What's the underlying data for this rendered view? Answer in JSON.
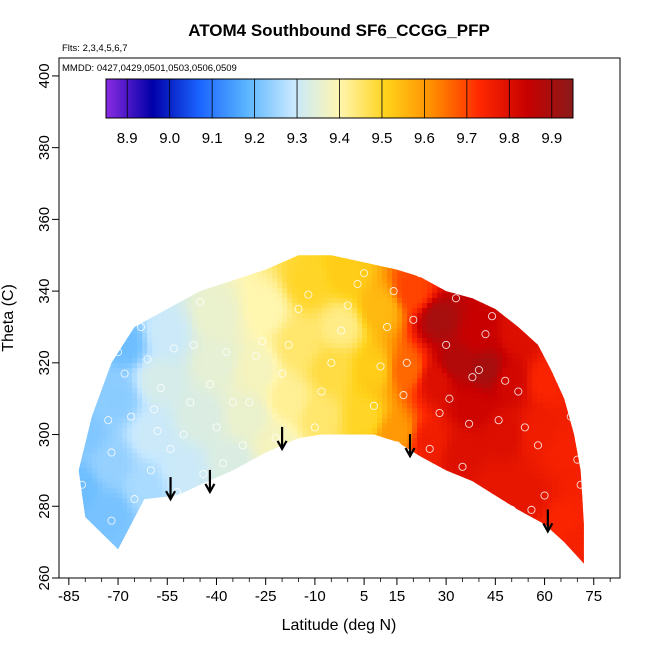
{
  "chart_data": {
    "type": "heatmap",
    "title": "ATOM4 Southbound SF6_CCGG_PFP",
    "flights_label": "Flts: 2,3,4,5,6,7",
    "dates_label": "MMDD: 0427,0429,0501,0503,0506,0509",
    "xlabel": "Latitude (deg N)",
    "ylabel": "Theta (C)",
    "xlim": [
      -88,
      83
    ],
    "ylim": [
      260,
      405
    ],
    "x_ticks": [
      "-85",
      "-70",
      "-55",
      "-40",
      "-25",
      "-10",
      "5",
      "15",
      "30",
      "45",
      "60",
      "75"
    ],
    "x_tick_values": [
      -85,
      -70,
      -55,
      -40,
      -25,
      -10,
      5,
      15,
      30,
      45,
      60,
      75
    ],
    "y_ticks": [
      "260",
      "280",
      "300",
      "320",
      "340",
      "360",
      "380",
      "400"
    ],
    "y_tick_values": [
      260,
      280,
      300,
      320,
      340,
      360,
      380,
      400
    ],
    "colorbar": {
      "range": [
        8.85,
        9.95
      ],
      "ticks": [
        "8.9",
        "9.0",
        "9.1",
        "9.2",
        "9.3",
        "9.4",
        "9.5",
        "9.6",
        "9.7",
        "9.8",
        "9.9"
      ],
      "tick_values": [
        8.9,
        9.0,
        9.1,
        9.2,
        9.3,
        9.4,
        9.5,
        9.6,
        9.7,
        9.8,
        9.9
      ],
      "colors": [
        "#8a2be2",
        "#0000a8",
        "#1a64ff",
        "#5ab4ff",
        "#c6e8ff",
        "#fff6b0",
        "#ffd21a",
        "#ff8c00",
        "#ff2800",
        "#c80000",
        "#8b1a1a"
      ]
    },
    "field_samples": [
      {
        "lat": -82,
        "theta": 285,
        "value": 9.2
      },
      {
        "lat": -80,
        "theta": 300,
        "value": 9.22
      },
      {
        "lat": -78,
        "theta": 315,
        "value": 9.23
      },
      {
        "lat": -72,
        "theta": 278,
        "value": 9.21
      },
      {
        "lat": -72,
        "theta": 292,
        "value": 9.24
      },
      {
        "lat": -70,
        "theta": 310,
        "value": 9.23
      },
      {
        "lat": -68,
        "theta": 325,
        "value": 9.2
      },
      {
        "lat": -62,
        "theta": 285,
        "value": 9.26
      },
      {
        "lat": -60,
        "theta": 300,
        "value": 9.3
      },
      {
        "lat": -58,
        "theta": 315,
        "value": 9.32
      },
      {
        "lat": -55,
        "theta": 328,
        "value": 9.3
      },
      {
        "lat": -50,
        "theta": 290,
        "value": 9.3
      },
      {
        "lat": -45,
        "theta": 305,
        "value": 9.33
      },
      {
        "lat": -40,
        "theta": 320,
        "value": 9.35
      },
      {
        "lat": -40,
        "theta": 333,
        "value": 9.36
      },
      {
        "lat": -35,
        "theta": 292,
        "value": 9.33
      },
      {
        "lat": -30,
        "theta": 305,
        "value": 9.36
      },
      {
        "lat": -28,
        "theta": 318,
        "value": 9.38
      },
      {
        "lat": -25,
        "theta": 335,
        "value": 9.4
      },
      {
        "lat": -22,
        "theta": 297,
        "value": 9.38
      },
      {
        "lat": -18,
        "theta": 310,
        "value": 9.42
      },
      {
        "lat": -15,
        "theta": 325,
        "value": 9.45
      },
      {
        "lat": -12,
        "theta": 342,
        "value": 9.5
      },
      {
        "lat": -8,
        "theta": 305,
        "value": 9.45
      },
      {
        "lat": -5,
        "theta": 318,
        "value": 9.48
      },
      {
        "lat": -2,
        "theta": 330,
        "value": 9.43
      },
      {
        "lat": 0,
        "theta": 345,
        "value": 9.52
      },
      {
        "lat": 5,
        "theta": 305,
        "value": 9.5
      },
      {
        "lat": 8,
        "theta": 318,
        "value": 9.52
      },
      {
        "lat": 10,
        "theta": 335,
        "value": 9.55
      },
      {
        "lat": 15,
        "theta": 300,
        "value": 9.6
      },
      {
        "lat": 18,
        "theta": 318,
        "value": 9.66
      },
      {
        "lat": 20,
        "theta": 340,
        "value": 9.7
      },
      {
        "lat": 25,
        "theta": 298,
        "value": 9.76
      },
      {
        "lat": 27,
        "theta": 315,
        "value": 9.8
      },
      {
        "lat": 28,
        "theta": 332,
        "value": 9.9
      },
      {
        "lat": 33,
        "theta": 320,
        "value": 9.88
      },
      {
        "lat": 35,
        "theta": 295,
        "value": 9.8
      },
      {
        "lat": 38,
        "theta": 308,
        "value": 9.83
      },
      {
        "lat": 40,
        "theta": 328,
        "value": 9.84
      },
      {
        "lat": 42,
        "theta": 318,
        "value": 9.9
      },
      {
        "lat": 45,
        "theta": 285,
        "value": 9.78
      },
      {
        "lat": 48,
        "theta": 300,
        "value": 9.8
      },
      {
        "lat": 50,
        "theta": 315,
        "value": 9.82
      },
      {
        "lat": 52,
        "theta": 328,
        "value": 9.8
      },
      {
        "lat": 55,
        "theta": 282,
        "value": 9.78
      },
      {
        "lat": 58,
        "theta": 300,
        "value": 9.76
      },
      {
        "lat": 60,
        "theta": 315,
        "value": 9.74
      },
      {
        "lat": 65,
        "theta": 275,
        "value": 9.74
      },
      {
        "lat": 66,
        "theta": 295,
        "value": 9.75
      },
      {
        "lat": 70,
        "theta": 270,
        "value": 9.75
      }
    ],
    "domain_bottom": [
      [
        -80,
        277
      ],
      [
        -70,
        268
      ],
      [
        -62,
        282
      ],
      [
        -52,
        283
      ],
      [
        -45,
        286
      ],
      [
        -35,
        290
      ],
      [
        -25,
        295
      ],
      [
        -15,
        299
      ],
      [
        -8,
        300
      ],
      [
        0,
        300
      ],
      [
        8,
        300
      ],
      [
        15,
        298
      ],
      [
        22,
        294
      ],
      [
        30,
        290
      ],
      [
        38,
        287
      ],
      [
        45,
        283
      ],
      [
        52,
        279
      ],
      [
        60,
        275
      ],
      [
        66,
        270
      ],
      [
        72,
        264
      ]
    ],
    "domain_top": [
      [
        -82,
        290
      ],
      [
        -78,
        305
      ],
      [
        -72,
        320
      ],
      [
        -65,
        330
      ],
      [
        -55,
        335
      ],
      [
        -45,
        340
      ],
      [
        -35,
        343
      ],
      [
        -25,
        346
      ],
      [
        -15,
        350
      ],
      [
        -5,
        350
      ],
      [
        5,
        348
      ],
      [
        15,
        346
      ],
      [
        22,
        344
      ],
      [
        30,
        340
      ],
      [
        38,
        338
      ],
      [
        45,
        335
      ],
      [
        52,
        330
      ],
      [
        58,
        325
      ],
      [
        62,
        318
      ],
      [
        66,
        310
      ],
      [
        69,
        300
      ],
      [
        71,
        290
      ],
      [
        72,
        275
      ],
      [
        72,
        264
      ]
    ],
    "observations": [
      [
        -81,
        286
      ],
      [
        -77,
        321
      ],
      [
        -73,
        304
      ],
      [
        -72,
        295
      ],
      [
        -72,
        276
      ],
      [
        -70,
        331
      ],
      [
        -70,
        323
      ],
      [
        -68,
        317
      ],
      [
        -66,
        305
      ],
      [
        -65,
        282
      ],
      [
        -63,
        330
      ],
      [
        -61,
        321
      ],
      [
        -60,
        290
      ],
      [
        -59,
        307
      ],
      [
        -58,
        301
      ],
      [
        -57,
        313
      ],
      [
        -55,
        278
      ],
      [
        -54,
        296
      ],
      [
        -53,
        324
      ],
      [
        -52,
        284
      ],
      [
        -50,
        300
      ],
      [
        -48,
        309
      ],
      [
        -47,
        325
      ],
      [
        -45,
        337
      ],
      [
        -44,
        289
      ],
      [
        -42,
        314
      ],
      [
        -40,
        302
      ],
      [
        -38,
        292
      ],
      [
        -37,
        323
      ],
      [
        -35,
        309
      ],
      [
        -32,
        297
      ],
      [
        -30,
        309
      ],
      [
        -28,
        322
      ],
      [
        -26,
        326
      ],
      [
        -22,
        299
      ],
      [
        -20,
        317
      ],
      [
        -18,
        325
      ],
      [
        -15,
        335
      ],
      [
        -12,
        339
      ],
      [
        -10,
        302
      ],
      [
        -8,
        312
      ],
      [
        -5,
        320
      ],
      [
        -2,
        329
      ],
      [
        0,
        336
      ],
      [
        3,
        342
      ],
      [
        5,
        345
      ],
      [
        8,
        308
      ],
      [
        10,
        319
      ],
      [
        12,
        330
      ],
      [
        14,
        340
      ],
      [
        15,
        297
      ],
      [
        17,
        311
      ],
      [
        18,
        320
      ],
      [
        20,
        332
      ],
      [
        22,
        345
      ],
      [
        25,
        296
      ],
      [
        28,
        306
      ],
      [
        30,
        325
      ],
      [
        31,
        310
      ],
      [
        33,
        338
      ],
      [
        35,
        291
      ],
      [
        37,
        303
      ],
      [
        38,
        316
      ],
      [
        40,
        318
      ],
      [
        42,
        328
      ],
      [
        44,
        333
      ],
      [
        46,
        304
      ],
      [
        48,
        315
      ],
      [
        50,
        279
      ],
      [
        52,
        312
      ],
      [
        54,
        302
      ],
      [
        56,
        279
      ],
      [
        58,
        297
      ],
      [
        60,
        283
      ],
      [
        63,
        330
      ],
      [
        68,
        305
      ],
      [
        70,
        293
      ],
      [
        71,
        286
      ]
    ],
    "arrow_latitudes": [
      -54,
      -42,
      -20,
      19,
      61
    ],
    "arrow_thetas": [
      282,
      284,
      296,
      294,
      273
    ]
  }
}
